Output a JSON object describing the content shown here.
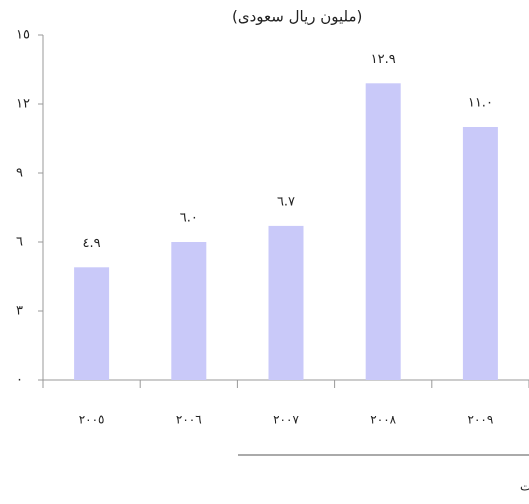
{
  "chart_data": {
    "type": "bar",
    "title": "(مليون ريال سعودى)",
    "categories": [
      "٢٠٠٥",
      "٢٠٠٦",
      "٢٠٠٧",
      "٢٠٠٨",
      "٢٠٠٩"
    ],
    "values": [
      4.9,
      6.0,
      6.7,
      12.9,
      11.0
    ],
    "value_labels": [
      "٤.٩",
      "٦.٠",
      "٦.٧",
      "١٢.٩",
      "١١.٠"
    ],
    "color": "#c9c9f9",
    "ylim": [
      0,
      15
    ],
    "yticks": [
      {
        "value": 0,
        "label": "٠"
      },
      {
        "value": 3,
        "label": "٣"
      },
      {
        "value": 6,
        "label": "٦"
      },
      {
        "value": 9,
        "label": "٩"
      },
      {
        "value": 12,
        "label": "١٢"
      },
      {
        "value": 15,
        "label": "١٥"
      }
    ],
    "source": "مصلحة الإحصاءات العامة والمعلومات"
  }
}
